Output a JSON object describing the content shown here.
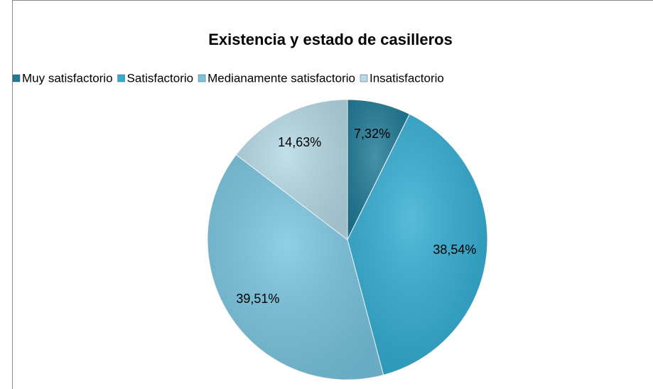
{
  "chart_data": {
    "type": "pie",
    "title": "Existencia y estado de casilleros",
    "categories": [
      "Muy satisfactorio",
      "Satisfactorio",
      "Medianamente satisfactorio",
      "Insatisfactorio"
    ],
    "values": [
      7.32,
      38.54,
      39.51,
      14.63
    ],
    "value_labels": [
      "7,32%",
      "38,54%",
      "39,51%",
      "14,63%"
    ],
    "colors": [
      "#1f7a96",
      "#33acd2",
      "#78c4de",
      "#b5d9e6"
    ],
    "legend": "top"
  }
}
